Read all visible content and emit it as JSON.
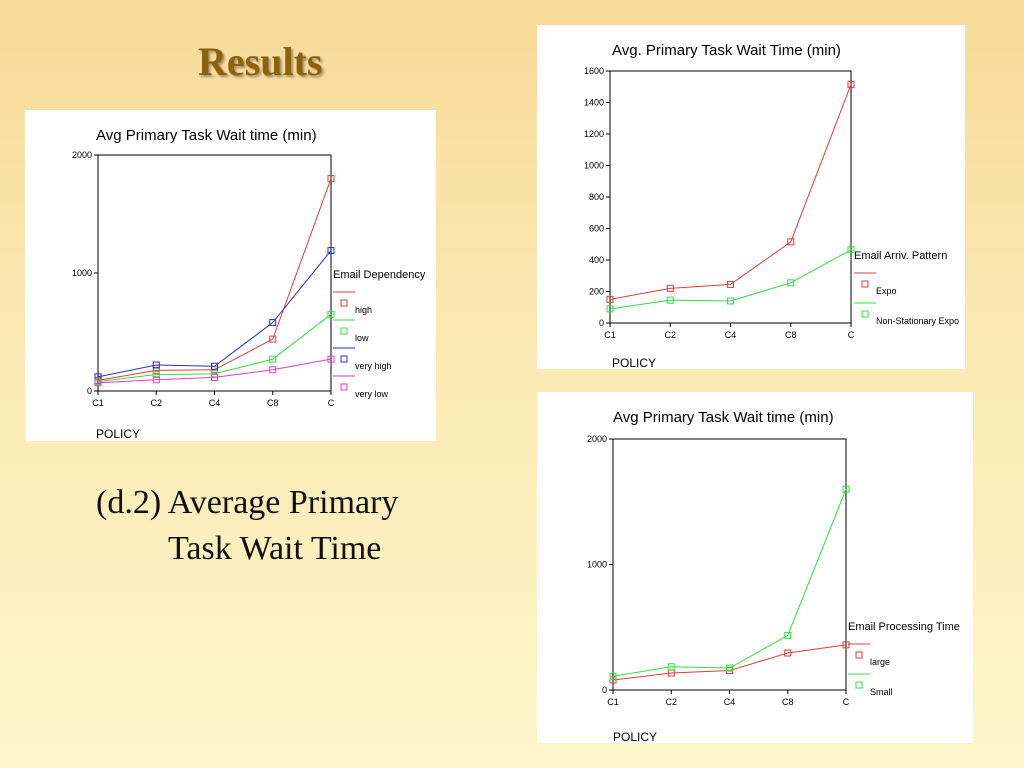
{
  "slide": {
    "title": "Results",
    "caption_line1": "(d.2) Average Primary",
    "caption_line2": "Task Wait Time"
  },
  "chart_data": [
    {
      "type": "line",
      "title": "Avg Primary Task Wait time (min)",
      "xlabel": "POLICY",
      "categories": [
        "C1",
        "C2",
        "C4",
        "C8",
        "C"
      ],
      "ylim": [
        0,
        2000
      ],
      "yticks": [
        0,
        1000,
        2000
      ],
      "grid": false,
      "legend_title": "Email Dependency",
      "legend_position": "right",
      "series": [
        {
          "name": "high",
          "color": "#e23b3b",
          "values": [
            90,
            175,
            180,
            440,
            1800
          ]
        },
        {
          "name": "low",
          "color": "#2ee03a",
          "values": [
            80,
            140,
            145,
            270,
            650
          ]
        },
        {
          "name": "very high",
          "color": "#2233bb",
          "values": [
            120,
            220,
            210,
            580,
            1190
          ]
        },
        {
          "name": "very low",
          "color": "#e63ad8",
          "values": [
            70,
            95,
            115,
            180,
            270
          ]
        }
      ]
    },
    {
      "type": "line",
      "title": "Avg. Primary Task Wait Time (min)",
      "xlabel": "POLICY",
      "categories": [
        "C1",
        "C2",
        "C4",
        "C8",
        "C"
      ],
      "ylim": [
        0,
        1600
      ],
      "yticks": [
        0,
        200,
        400,
        600,
        800,
        1000,
        1200,
        1400,
        1600
      ],
      "grid": false,
      "legend_title": "Email Arriv. Pattern",
      "legend_position": "right",
      "series": [
        {
          "name": "Expo",
          "color": "#e23b3b",
          "values": [
            150,
            220,
            245,
            515,
            1515
          ]
        },
        {
          "name": "Non-Stationary Expo",
          "color": "#2ee03a",
          "values": [
            90,
            145,
            140,
            255,
            465
          ]
        }
      ]
    },
    {
      "type": "line",
      "title": "Avg Primary Task Wait time (min)",
      "xlabel": "POLICY",
      "categories": [
        "C1",
        "C2",
        "C4",
        "C8",
        "C"
      ],
      "ylim": [
        0,
        2000
      ],
      "yticks": [
        0,
        1000,
        2000
      ],
      "grid": false,
      "legend_title": "Email Processing Time",
      "legend_position": "right",
      "series": [
        {
          "name": "large",
          "color": "#e23b3b",
          "values": [
            80,
            135,
            155,
            295,
            360
          ]
        },
        {
          "name": "Small",
          "color": "#2ee03a",
          "values": [
            110,
            185,
            175,
            435,
            1600
          ]
        }
      ]
    }
  ]
}
